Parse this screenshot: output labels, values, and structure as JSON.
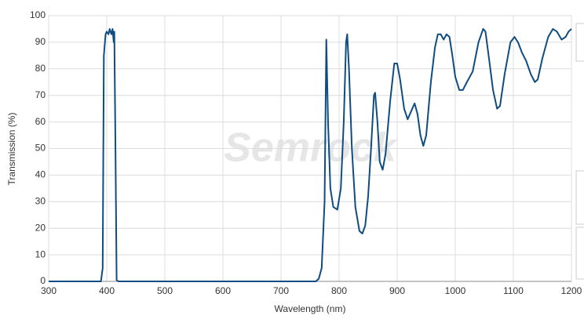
{
  "chart_data": {
    "type": "line",
    "watermark": "Semrock",
    "x_label": "Wavelength (nm)",
    "y_label": "Transmission (%)",
    "xlim": [
      300,
      1200
    ],
    "ylim": [
      0,
      100
    ],
    "xticks": [
      300,
      400,
      500,
      600,
      700,
      800,
      900,
      1000,
      1100,
      1200
    ],
    "yticks": [
      0,
      10,
      20,
      30,
      40,
      50,
      60,
      70,
      80,
      90,
      100
    ],
    "grid": true,
    "x": [
      300,
      390,
      393,
      395,
      398,
      400,
      403,
      405,
      408,
      410,
      412,
      413,
      415,
      417,
      420,
      760,
      765,
      770,
      775,
      778,
      781,
      785,
      790,
      797,
      803,
      808,
      812,
      814,
      817,
      822,
      828,
      835,
      840,
      845,
      850,
      855,
      860,
      862,
      866,
      870,
      875,
      880,
      888,
      895,
      900,
      905,
      912,
      918,
      924,
      930,
      935,
      940,
      945,
      950,
      958,
      965,
      970,
      975,
      980,
      985,
      990,
      995,
      1000,
      1007,
      1013,
      1020,
      1030,
      1040,
      1048,
      1052,
      1058,
      1065,
      1072,
      1077,
      1085,
      1095,
      1102,
      1108,
      1115,
      1122,
      1130,
      1137,
      1142,
      1150,
      1160,
      1168,
      1175,
      1183,
      1190,
      1195,
      1200
    ],
    "series": [
      {
        "name": "Transmission",
        "color": "#0f4c81",
        "values": [
          0,
          0,
          5,
          85,
          93,
          94,
          93,
          95,
          93,
          95,
          90,
          94,
          50,
          0.5,
          0,
          0,
          1,
          5,
          30,
          91,
          60,
          35,
          28,
          27,
          35,
          60,
          90,
          93,
          80,
          50,
          28,
          19,
          18,
          21,
          32,
          50,
          70,
          71,
          60,
          45,
          42,
          48,
          68,
          82,
          82,
          76,
          65,
          61,
          64,
          67,
          63,
          55,
          51,
          55,
          75,
          88,
          93,
          93,
          91,
          93,
          92,
          85,
          77,
          72,
          72,
          75,
          79,
          90,
          95,
          94,
          84,
          72,
          65,
          66,
          78,
          90,
          92,
          90,
          86,
          83,
          78,
          75,
          76,
          84,
          92,
          95,
          94,
          91,
          92,
          94,
          95
        ]
      }
    ]
  }
}
